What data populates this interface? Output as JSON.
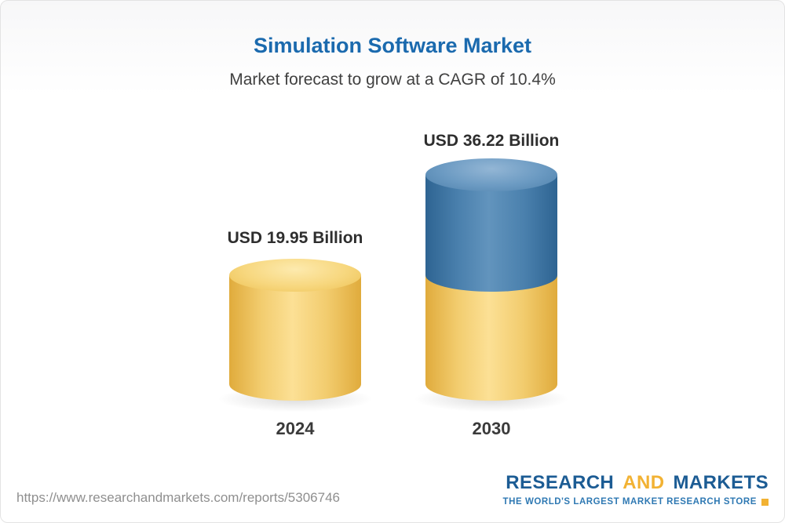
{
  "page": {
    "title": "Simulation Software Market",
    "subtitle": "Market forecast to grow at a CAGR of 10.4%"
  },
  "chart_data": {
    "type": "bar",
    "title": "Simulation Software Market",
    "subtitle": "Market forecast to grow at a CAGR of 10.4%",
    "cagr_percent": 10.4,
    "unit": "USD Billion",
    "categories": [
      "2024",
      "2030"
    ],
    "values": [
      19.95,
      36.22
    ],
    "value_labels": [
      "USD 19.95 Billion",
      "USD 36.22 Billion"
    ],
    "bar_style": "3d-cylinder",
    "colors": {
      "base_segment": "#F2CC6E",
      "growth_segment": "#4A80AD",
      "title_text": "#1B6AAE",
      "label_text": "#2E2E2E"
    },
    "notes": "2030 cylinder is stacked: yellow base equal to 2024 height plus blue growth segment on top"
  },
  "footer": {
    "url": "https://www.researchandmarkets.com/reports/5306746",
    "logo": {
      "word1": "RESEARCH",
      "word2": "AND",
      "word3": "MARKETS",
      "tagline": "THE WORLD'S LARGEST MARKET RESEARCH STORE",
      "brand_blue": "#1C5C94",
      "brand_gold": "#F2B233"
    }
  }
}
